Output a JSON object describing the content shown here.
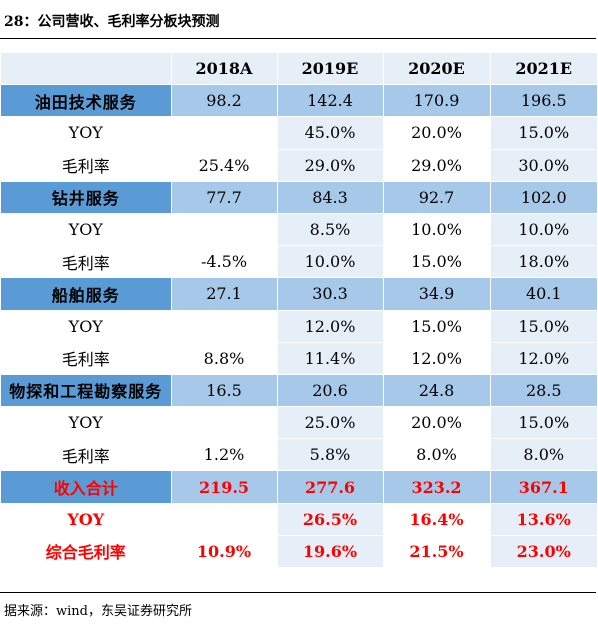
{
  "caption": "28：公司营收、毛利率分板块预测",
  "header": [
    "",
    "2018A",
    "2019E",
    "2020E",
    "2021E"
  ],
  "rows": [
    {
      "type": "seg",
      "cells": [
        "油田技术服务",
        "98.2",
        "142.4",
        "170.9",
        "196.5"
      ]
    },
    {
      "type": "sub",
      "cells": [
        "YOY",
        "",
        "45.0%",
        "20.0%",
        "15.0%"
      ]
    },
    {
      "type": "sub",
      "cells": [
        "毛利率",
        "25.4%",
        "29.0%",
        "29.0%",
        "30.0%"
      ]
    },
    {
      "type": "seg",
      "cells": [
        "钻井服务",
        "77.7",
        "84.3",
        "92.7",
        "102.0"
      ]
    },
    {
      "type": "sub",
      "cells": [
        "YOY",
        "",
        "8.5%",
        "10.0%",
        "10.0%"
      ]
    },
    {
      "type": "sub",
      "cells": [
        "毛利率",
        "-4.5%",
        "10.0%",
        "15.0%",
        "18.0%"
      ]
    },
    {
      "type": "seg",
      "cells": [
        "船舶服务",
        "27.1",
        "30.3",
        "34.9",
        "40.1"
      ]
    },
    {
      "type": "sub",
      "cells": [
        "YOY",
        "",
        "12.0%",
        "15.0%",
        "15.0%"
      ]
    },
    {
      "type": "sub",
      "cells": [
        "毛利率",
        "8.8%",
        "11.4%",
        "12.0%",
        "12.0%"
      ]
    },
    {
      "type": "seg",
      "cells": [
        "物探和工程勘察服务",
        "16.5",
        "20.6",
        "24.8",
        "28.5"
      ]
    },
    {
      "type": "sub",
      "cells": [
        "YOY",
        "",
        "25.0%",
        "20.0%",
        "15.0%"
      ]
    },
    {
      "type": "sub",
      "cells": [
        "毛利率",
        "1.2%",
        "5.8%",
        "8.0%",
        "8.0%"
      ]
    },
    {
      "type": "sum-blue",
      "cells": [
        "收入合计",
        "219.5",
        "277.6",
        "323.2",
        "367.1"
      ]
    },
    {
      "type": "sum",
      "cells": [
        "YOY",
        "",
        "26.5%",
        "16.4%",
        "13.6%"
      ]
    },
    {
      "type": "sum",
      "cells": [
        "综合毛利率",
        "10.9%",
        "19.6%",
        "21.5%",
        "23.0%"
      ]
    }
  ],
  "source": "据来源：wind，东吴证券研究所"
}
